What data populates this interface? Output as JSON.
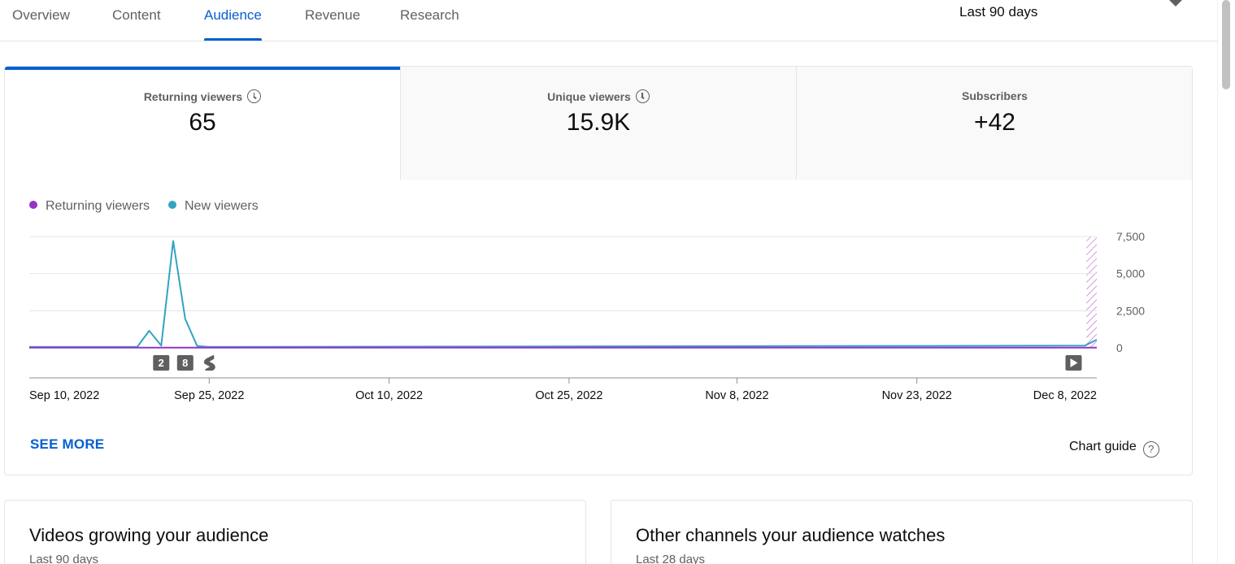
{
  "tabs": [
    {
      "label": "Overview",
      "active": false
    },
    {
      "label": "Content",
      "active": false
    },
    {
      "label": "Audience",
      "active": true
    },
    {
      "label": "Revenue",
      "active": false
    },
    {
      "label": "Research",
      "active": false
    }
  ],
  "period": {
    "label": "Last 90 days",
    "icon": "caret-down-icon"
  },
  "metrics": [
    {
      "label": "Returning viewers",
      "value": "65",
      "icon": "clock-icon"
    },
    {
      "label": "Unique viewers",
      "value": "15.9K",
      "icon": "clock-icon"
    },
    {
      "label": "Subscribers",
      "value": "+42",
      "icon": ""
    }
  ],
  "legend": [
    {
      "label": "Returning viewers",
      "color": "#9334c5"
    },
    {
      "label": "New viewers",
      "color": "#33a2c4"
    }
  ],
  "chart_data": {
    "type": "line",
    "ylim": [
      0,
      7500
    ],
    "y_ticks": [
      "7,500",
      "5,000",
      "2,500",
      "0"
    ],
    "y_tick_values": [
      7500,
      5000,
      2500,
      0
    ],
    "x_tick_labels": [
      "Sep 10, 2022",
      "Sep 25, 2022",
      "Oct 10, 2022",
      "Oct 25, 2022",
      "Nov 8, 2022",
      "Nov 23, 2022",
      "Dec 8, 2022"
    ],
    "x_tick_days": [
      0,
      15,
      30,
      45,
      59,
      74,
      89
    ],
    "series": [
      {
        "name": "New viewers",
        "color": "#33a2c4",
        "points": [
          [
            0,
            60
          ],
          [
            9,
            60
          ],
          [
            10,
            1150
          ],
          [
            11,
            150
          ],
          [
            12,
            7200
          ],
          [
            13,
            1950
          ],
          [
            14,
            120
          ],
          [
            15,
            60
          ],
          [
            88,
            150
          ],
          [
            89,
            550
          ]
        ]
      },
      {
        "name": "Returning viewers",
        "color": "#9334c5",
        "points": [
          [
            0,
            10
          ],
          [
            89,
            10
          ]
        ]
      }
    ],
    "markers": [
      {
        "label": "2",
        "day": 11,
        "kind": "badge"
      },
      {
        "label": "8",
        "day": 13,
        "kind": "badge"
      },
      {
        "label": "",
        "day": 15,
        "kind": "shorts-icon"
      },
      {
        "label": "",
        "day": 87,
        "kind": "video-icon"
      }
    ],
    "pending_region": {
      "from_day": 88,
      "to_day": 89,
      "color": "#c979d6"
    },
    "grid": true
  },
  "actions": {
    "see_more": "SEE MORE",
    "chart_guide": "Chart guide",
    "chart_guide_icon": "?"
  },
  "bottom_cards": [
    {
      "title": "Videos growing your audience",
      "subtitle": "Last 90 days"
    },
    {
      "title": "Other channels your audience watches",
      "subtitle": "Last 28 days"
    }
  ]
}
